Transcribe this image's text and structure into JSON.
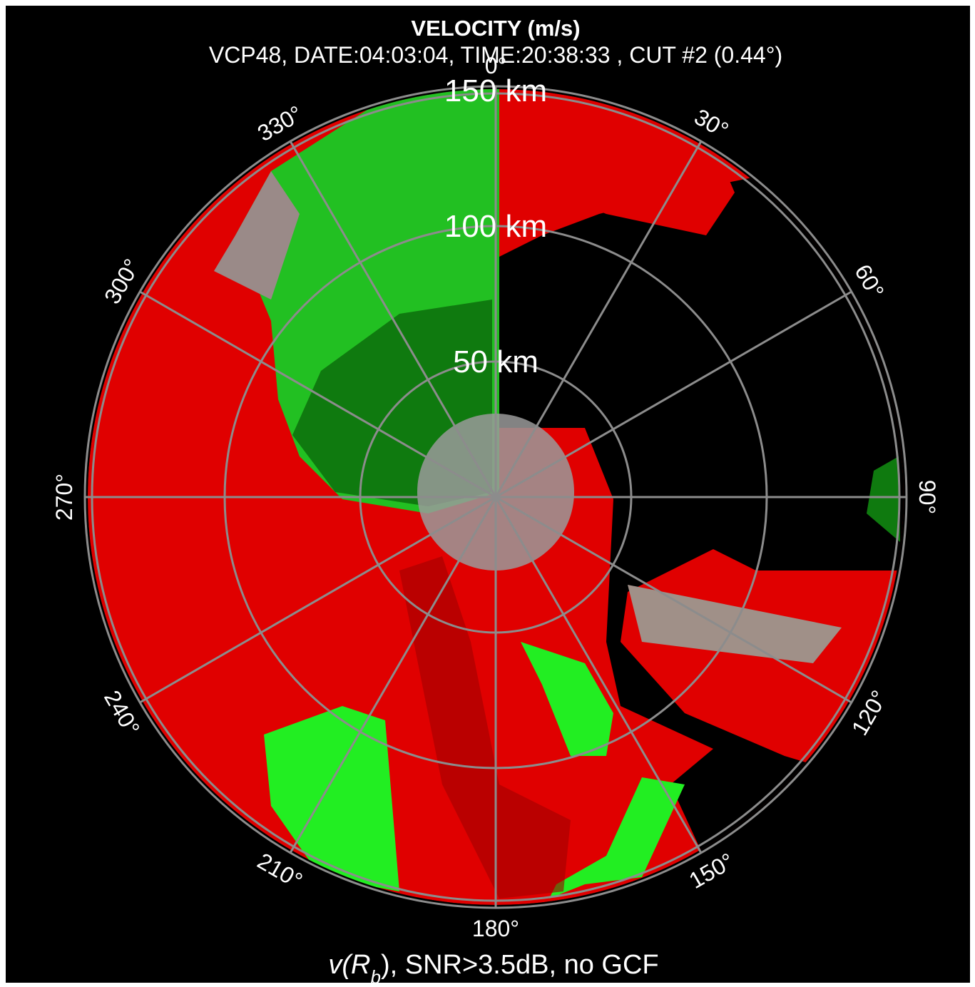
{
  "header": {
    "title": "VELOCITY (m/s)",
    "subtitle": "VCP48, DATE:04:03:04, TIME:20:38:33 , CUT #2 (0.44°)"
  },
  "range_labels": [
    "50 km",
    "100 km",
    "150 km"
  ],
  "azimuth_labels": [
    "0°",
    "30°",
    "60°",
    "90°",
    "120°",
    "150°",
    "180°",
    "210°",
    "240°",
    "270°",
    "300°",
    "330°"
  ],
  "footer": {
    "prefix": "v(",
    "symbol": "R",
    "subscript": "b",
    "suffix": "), SNR>3.5dB, no GCF"
  }
}
